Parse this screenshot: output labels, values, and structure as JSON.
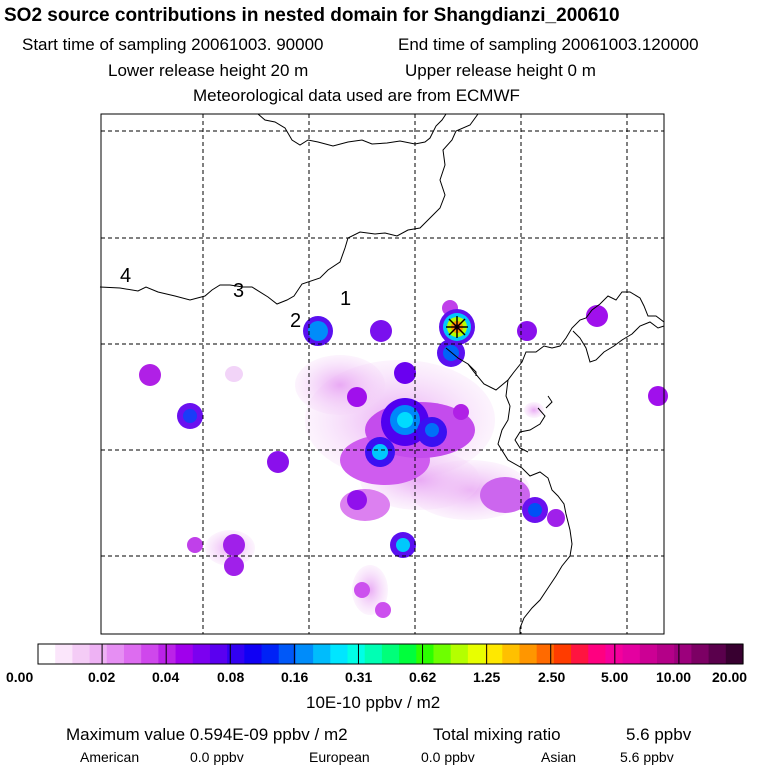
{
  "title": "SO2 source contributions in nested domain for Shangdianzi_200610",
  "header": {
    "start_label": "Start time of sampling 20061003. 90000",
    "end_label": "End time of sampling 20061003.120000",
    "lower_label": "Lower release height   20 m",
    "upper_label": "Upper release height    0 m",
    "met_label": "Meteorological data used are from ECMWF"
  },
  "map": {
    "day_labels": [
      "4",
      "3",
      "2",
      "1"
    ],
    "source_marker": "receptor-star-icon",
    "colors": {
      "coast": "#000000",
      "grid": "#000000"
    }
  },
  "colorbar": {
    "ticks": [
      "0.00",
      "0.02",
      "0.04",
      "0.08",
      "0.16",
      "0.31",
      "0.62",
      "1.25",
      "2.50",
      "5.00",
      "10.00",
      "20.00"
    ],
    "unit": "10E-10 ppbv / m2",
    "colors": [
      "#ffffff",
      "#fbe6fb",
      "#f4ccf6",
      "#eeb2f4",
      "#e68ff3",
      "#dd6cf0",
      "#cf47ec",
      "#bb22e8",
      "#a000ec",
      "#7c00f0",
      "#5a00f0",
      "#3200f2",
      "#1000f4",
      "#0022f6",
      "#0058f8",
      "#008cfa",
      "#00bcfc",
      "#00e6ff",
      "#00ffe6",
      "#00ffb4",
      "#00ff7a",
      "#00ff3c",
      "#2cff00",
      "#6eff00",
      "#b4ff00",
      "#e8ff00",
      "#ffe800",
      "#ffc000",
      "#ff9600",
      "#ff6a00",
      "#ff3c00",
      "#ff1440",
      "#ff0080",
      "#f4009c",
      "#e400a0",
      "#cc0094",
      "#b40088",
      "#9c007c",
      "#7c0064",
      "#5a004c",
      "#380030"
    ]
  },
  "footer": {
    "max_label": "Maximum value  0.594E-09 ppbv / m2",
    "total_label": "Total mixing ratio",
    "total_value": "5.6 ppbv",
    "american_label": "American",
    "american_value": "0.0 ppbv",
    "european_label": "European",
    "european_value": "0.0 ppbv",
    "asian_label": "Asian",
    "asian_value": "5.6 ppbv"
  }
}
